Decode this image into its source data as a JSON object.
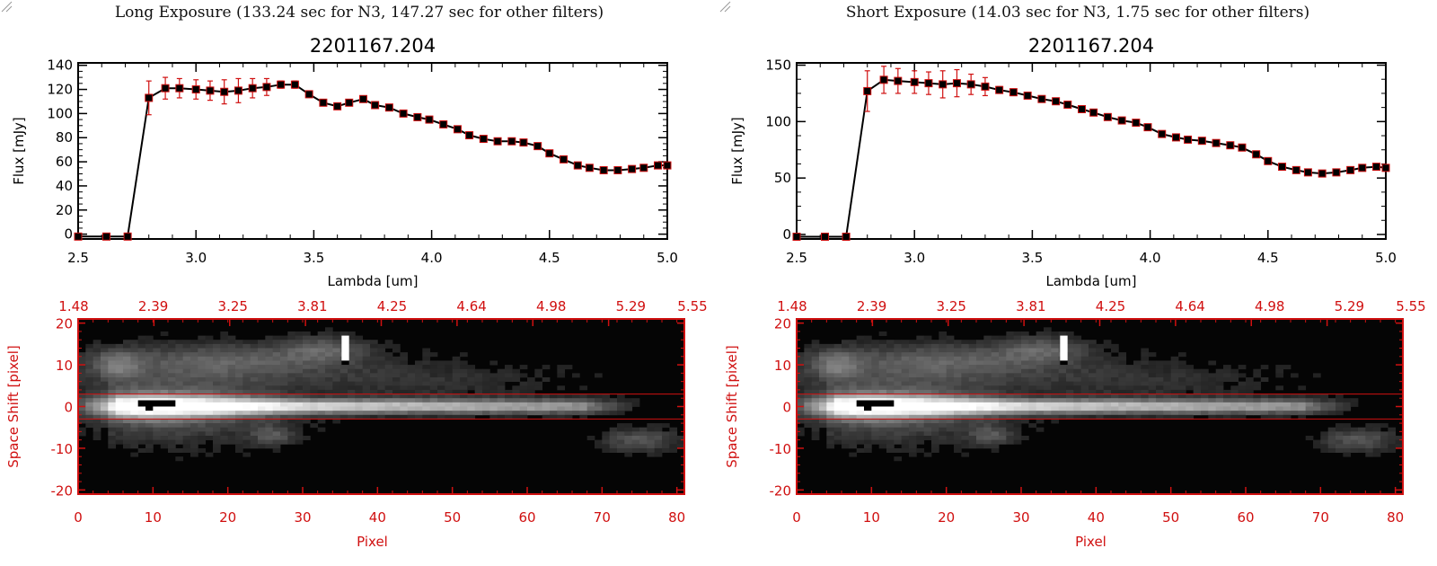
{
  "panels": [
    {
      "caption": "Long Exposure (133.24 sec for N3, 147.27 sec for other filters)",
      "chart_data": {
        "type": "line",
        "title": "2201167.204",
        "xlabel": "Lambda [um]",
        "ylabel": "Flux [mJy]",
        "xlim": [
          2.5,
          5.0
        ],
        "ylim": [
          -4,
          142
        ],
        "xticks": [
          "2.5",
          "3.0",
          "3.5",
          "4.0",
          "4.5",
          "5.0"
        ],
        "yticks": [
          "0",
          "20",
          "40",
          "60",
          "80",
          "100",
          "120",
          "140"
        ],
        "x": [
          2.5,
          2.62,
          2.71,
          2.8,
          2.87,
          2.93,
          3.0,
          3.06,
          3.12,
          3.18,
          3.24,
          3.3,
          3.36,
          3.42,
          3.48,
          3.54,
          3.6,
          3.65,
          3.71,
          3.76,
          3.82,
          3.88,
          3.94,
          3.99,
          4.05,
          4.11,
          4.16,
          4.22,
          4.28,
          4.34,
          4.39,
          4.45,
          4.5,
          4.56,
          4.62,
          4.67,
          4.73,
          4.79,
          4.85,
          4.9,
          4.96,
          5.0
        ],
        "y": [
          -2,
          -2,
          -2,
          113,
          121,
          121,
          120,
          119,
          118,
          119,
          121,
          122,
          124,
          124,
          116,
          109,
          106,
          109,
          112,
          107,
          105,
          100,
          97,
          95,
          91,
          87,
          82,
          79,
          77,
          77,
          76,
          73,
          67,
          62,
          57,
          55,
          53,
          53,
          54,
          55,
          57,
          57
        ],
        "err": [
          0,
          0,
          0,
          14,
          9,
          8,
          8,
          8,
          10,
          10,
          8,
          7,
          3,
          3,
          2,
          2,
          2,
          2,
          2,
          2,
          2,
          2,
          2,
          2,
          2,
          2,
          2,
          2,
          2,
          2,
          2,
          2,
          2,
          2,
          2,
          2,
          2,
          2,
          2,
          2,
          2,
          2
        ],
        "marker_color": "#000000",
        "errorbar_color": "#d01010"
      },
      "image_data": {
        "type": "heatmap",
        "xlabel": "Pixel",
        "ylabel": "Space Shift [pixel]",
        "xlim": [
          0,
          81
        ],
        "ylim": [
          -21,
          21
        ],
        "xticks": [
          "0",
          "10",
          "20",
          "30",
          "40",
          "50",
          "60",
          "70",
          "80"
        ],
        "yticks": [
          "-20",
          "-10",
          "0",
          "10",
          "20"
        ],
        "top_ticks": [
          "1.48",
          "2.39",
          "3.25",
          "3.81",
          "4.25",
          "4.64",
          "4.98",
          "5.29",
          "5.55"
        ],
        "aperture": [
          -3,
          3
        ],
        "axis_color": "#d01010"
      }
    },
    {
      "caption": "Short Exposure (14.03 sec for N3, 1.75 sec for other filters)",
      "chart_data": {
        "type": "line",
        "title": "2201167.204",
        "xlabel": "Lambda [um]",
        "ylabel": "Flux [mJy]",
        "xlim": [
          2.5,
          5.0
        ],
        "ylim": [
          -4,
          152
        ],
        "xticks": [
          "2.5",
          "3.0",
          "3.5",
          "4.0",
          "4.5",
          "5.0"
        ],
        "yticks": [
          "0",
          "50",
          "100",
          "150"
        ],
        "x": [
          2.5,
          2.62,
          2.71,
          2.8,
          2.87,
          2.93,
          3.0,
          3.06,
          3.12,
          3.18,
          3.24,
          3.3,
          3.36,
          3.42,
          3.48,
          3.54,
          3.6,
          3.65,
          3.71,
          3.76,
          3.82,
          3.88,
          3.94,
          3.99,
          4.05,
          4.11,
          4.16,
          4.22,
          4.28,
          4.34,
          4.39,
          4.45,
          4.5,
          4.56,
          4.62,
          4.67,
          4.73,
          4.79,
          4.85,
          4.9,
          4.96,
          5.0
        ],
        "y": [
          -2,
          -2,
          -2,
          127,
          137,
          136,
          135,
          134,
          133,
          134,
          133,
          131,
          128,
          126,
          123,
          120,
          118,
          115,
          111,
          108,
          104,
          101,
          99,
          95,
          89,
          86,
          84,
          83,
          81,
          79,
          77,
          71,
          65,
          60,
          57,
          55,
          54,
          55,
          57,
          59,
          60,
          59
        ],
        "err": [
          0,
          0,
          0,
          18,
          12,
          11,
          10,
          10,
          12,
          12,
          9,
          8,
          3,
          3,
          2,
          2,
          2,
          2,
          2,
          2,
          2,
          2,
          2,
          2,
          2,
          2,
          2,
          2,
          2,
          2,
          2,
          2,
          2,
          2,
          2,
          2,
          2,
          2,
          2,
          2,
          2,
          2
        ],
        "marker_color": "#000000",
        "errorbar_color": "#d01010"
      },
      "image_data": {
        "type": "heatmap",
        "xlabel": "Pixel",
        "ylabel": "Space Shift [pixel]",
        "xlim": [
          0,
          81
        ],
        "ylim": [
          -21,
          21
        ],
        "xticks": [
          "0",
          "10",
          "20",
          "30",
          "40",
          "50",
          "60",
          "70",
          "80"
        ],
        "yticks": [
          "-20",
          "-10",
          "0",
          "10",
          "20"
        ],
        "top_ticks": [
          "1.48",
          "2.39",
          "3.25",
          "3.81",
          "4.25",
          "4.64",
          "4.98",
          "5.29",
          "5.55"
        ],
        "aperture": [
          -3,
          3
        ],
        "axis_color": "#d01010"
      }
    }
  ]
}
